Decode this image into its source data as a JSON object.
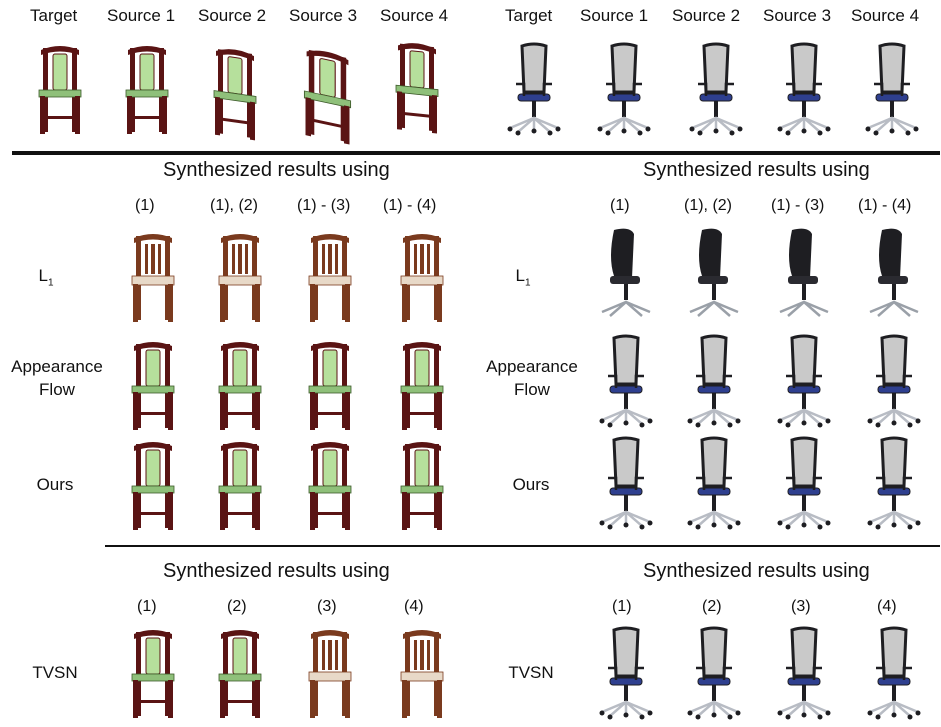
{
  "left_panel": {
    "header_labels": [
      "Target",
      "Source 1",
      "Source 2",
      "Source 3",
      "Source 4"
    ],
    "section_title": "Synthesized results using",
    "column_labels": [
      "(1)",
      "(1), (2)",
      "(1) - (3)",
      "(1) - (4)"
    ],
    "row_labels": {
      "l1": "L",
      "l1_sub": "1",
      "af_line1": "Appearance",
      "af_line2": "Flow",
      "ours": "Ours"
    },
    "tvsn_title": "Synthesized results using",
    "tvsn_column_labels": [
      "(1)",
      "(2)",
      "(3)",
      "(4)"
    ],
    "tvsn_label": "TVSN"
  },
  "right_panel": {
    "header_labels": [
      "Target",
      "Source 1",
      "Source 2",
      "Source 3",
      "Source 4"
    ],
    "section_title": "Synthesized results using",
    "column_labels": [
      "(1)",
      "(1), (2)",
      "(1) - (3)",
      "(1) - (4)"
    ],
    "row_labels": {
      "l1": "L",
      "l1_sub": "1",
      "af_line1": "Appearance",
      "af_line2": "Flow",
      "ours": "Ours"
    },
    "tvsn_title": "Synthesized results using",
    "tvsn_column_labels": [
      "(1)",
      "(2)",
      "(3)",
      "(4)"
    ],
    "tvsn_label": "TVSN"
  },
  "colors": {
    "wood": "#5a1414",
    "seat_green": "#8fc07a",
    "back_green": "#b6e09c",
    "l1_wood": "#7a3a1e",
    "office_black": "#1e1e22",
    "mesh": "#c9c9c9",
    "seat_blue": "#2e3f8f",
    "metal": "#b8bcc4"
  },
  "icons": {
    "wooden_chair": "wooden-chair-icon",
    "office_chair": "office-chair-icon"
  }
}
